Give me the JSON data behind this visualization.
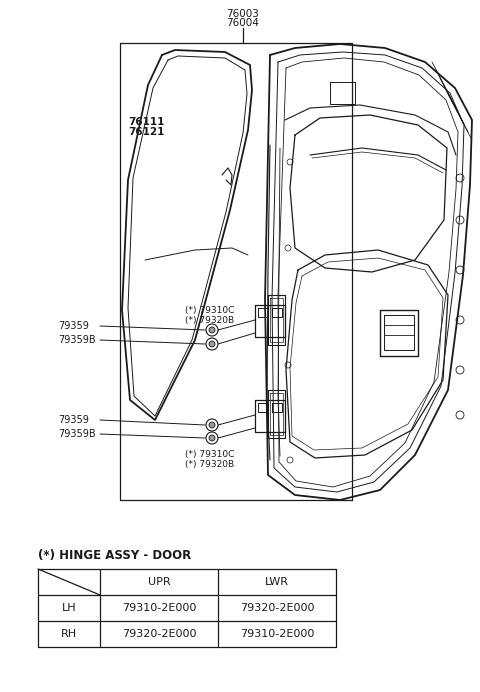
{
  "bg_color": "#ffffff",
  "table_title": "(*) HINGE ASSY - DOOR",
  "table_col_headers": [
    "",
    "UPR",
    "LWR"
  ],
  "table_rows": [
    [
      "LH",
      "79310-2E000",
      "79320-2E000"
    ],
    [
      "RH",
      "79320-2E000",
      "79310-2E000"
    ]
  ],
  "line_color": "#1a1a1a",
  "text_color": "#1a1a1a",
  "table_border_color": "#333333",
  "label_76003": "76003",
  "label_76004": "76004",
  "label_76111": "76111",
  "label_76121": "76121",
  "label_upr_hinge_1": "(*) 79310C",
  "label_upr_hinge_2": "(*) 79320B",
  "label_lwr_hinge_1": "(*) 79310C",
  "label_lwr_hinge_2": "(*) 79320B",
  "label_79359_upr": "79359",
  "label_79359B_upr": "79359B",
  "label_79359_lwr": "79359",
  "label_79359B_lwr": "79359B"
}
